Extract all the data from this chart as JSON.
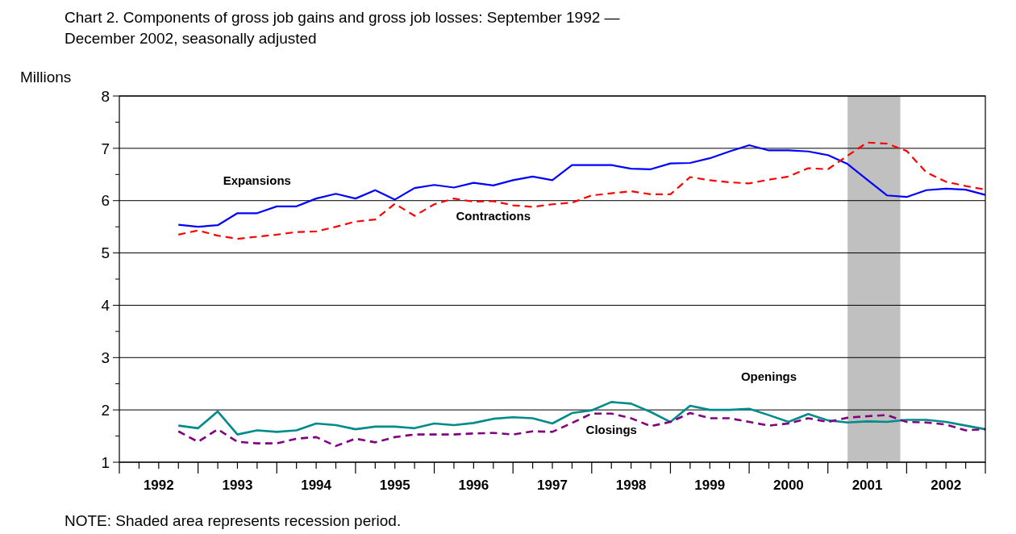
{
  "chart_data": {
    "type": "line",
    "title": "Chart 2. Components of gross job gains and gross job losses: September 1992 — December 2002, seasonally adjusted",
    "ylabel": "Millions",
    "x": [
      1992.75,
      1993,
      1993.25,
      1993.5,
      1993.75,
      1994,
      1994.25,
      1994.5,
      1994.75,
      1995,
      1995.25,
      1995.5,
      1995.75,
      1996,
      1996.25,
      1996.5,
      1996.75,
      1997,
      1997.25,
      1997.5,
      1997.75,
      1998,
      1998.25,
      1998.5,
      1998.75,
      1999,
      1999.25,
      1999.5,
      1999.75,
      2000,
      2000.25,
      2000.5,
      2000.75,
      2001,
      2001.25,
      2001.5,
      2001.75,
      2002,
      2002.25,
      2002.5,
      2002.75,
      2003
    ],
    "series": [
      {
        "name": "Expansions",
        "color": "#0000ff",
        "line_style": "solid",
        "values": [
          5.54,
          5.5,
          5.53,
          5.76,
          5.76,
          5.89,
          5.89,
          6.04,
          6.13,
          6.04,
          6.2,
          6.02,
          6.24,
          6.3,
          6.25,
          6.34,
          6.29,
          6.39,
          6.46,
          6.39,
          6.68,
          6.68,
          6.68,
          6.61,
          6.6,
          6.71,
          6.72,
          6.81,
          6.94,
          7.06,
          6.96,
          6.96,
          6.94,
          6.87,
          6.7,
          6.4,
          6.1,
          6.07,
          6.2,
          6.23,
          6.21,
          6.11
        ]
      },
      {
        "name": "Contractions",
        "color": "#ff0000",
        "line_style": "dashed",
        "values": [
          5.35,
          5.43,
          5.33,
          5.27,
          5.31,
          5.35,
          5.4,
          5.41,
          5.5,
          5.6,
          5.64,
          5.94,
          5.71,
          5.93,
          6.04,
          5.98,
          5.99,
          5.91,
          5.88,
          5.93,
          5.96,
          6.1,
          6.14,
          6.18,
          6.12,
          6.12,
          6.45,
          6.39,
          6.35,
          6.33,
          6.4,
          6.46,
          6.62,
          6.6,
          6.86,
          7.11,
          7.09,
          6.95,
          6.54,
          6.36,
          6.28,
          6.21
        ]
      },
      {
        "name": "Openings",
        "color": "#008b8b",
        "line_style": "solid",
        "values": [
          1.7,
          1.65,
          1.97,
          1.53,
          1.61,
          1.58,
          1.61,
          1.74,
          1.71,
          1.63,
          1.68,
          1.68,
          1.65,
          1.74,
          1.71,
          1.75,
          1.83,
          1.86,
          1.84,
          1.74,
          1.94,
          1.99,
          2.15,
          2.12,
          1.96,
          1.77,
          2.08,
          2.0,
          2.0,
          2.02,
          1.9,
          1.77,
          1.92,
          1.8,
          1.76,
          1.78,
          1.77,
          1.81,
          1.81,
          1.77,
          1.7,
          1.63
        ]
      },
      {
        "name": "Closings",
        "color": "#800080",
        "line_style": "dashed",
        "values": [
          1.59,
          1.39,
          1.63,
          1.39,
          1.36,
          1.36,
          1.45,
          1.48,
          1.31,
          1.45,
          1.38,
          1.48,
          1.53,
          1.53,
          1.53,
          1.55,
          1.56,
          1.53,
          1.59,
          1.58,
          1.75,
          1.93,
          1.93,
          1.84,
          1.69,
          1.77,
          1.94,
          1.84,
          1.84,
          1.77,
          1.7,
          1.74,
          1.84,
          1.77,
          1.85,
          1.88,
          1.9,
          1.77,
          1.76,
          1.72,
          1.61,
          1.63
        ]
      }
    ],
    "xlim": [
      1992,
      2003
    ],
    "xticks": [
      {
        "value": 1992,
        "label": null
      },
      {
        "value": 1992.25,
        "label": null
      },
      {
        "value": 1992.5,
        "label": "1992"
      },
      {
        "value": 1992.75,
        "label": null
      },
      {
        "value": 1993,
        "label": null
      },
      {
        "value": 1993.25,
        "label": null
      },
      {
        "value": 1993.5,
        "label": "1993"
      },
      {
        "value": 1993.75,
        "label": null
      },
      {
        "value": 1994,
        "label": null
      },
      {
        "value": 1994.25,
        "label": null
      },
      {
        "value": 1994.5,
        "label": "1994"
      },
      {
        "value": 1994.75,
        "label": null
      },
      {
        "value": 1995,
        "label": null
      },
      {
        "value": 1995.25,
        "label": null
      },
      {
        "value": 1995.5,
        "label": "1995"
      },
      {
        "value": 1995.75,
        "label": null
      },
      {
        "value": 1996,
        "label": null
      },
      {
        "value": 1996.25,
        "label": null
      },
      {
        "value": 1996.5,
        "label": "1996"
      },
      {
        "value": 1996.75,
        "label": null
      },
      {
        "value": 1997,
        "label": null
      },
      {
        "value": 1997.25,
        "label": null
      },
      {
        "value": 1997.5,
        "label": "1997"
      },
      {
        "value": 1997.75,
        "label": null
      },
      {
        "value": 1998,
        "label": null
      },
      {
        "value": 1998.25,
        "label": null
      },
      {
        "value": 1998.5,
        "label": "1998"
      },
      {
        "value": 1998.75,
        "label": null
      },
      {
        "value": 1999,
        "label": null
      },
      {
        "value": 1999.25,
        "label": null
      },
      {
        "value": 1999.5,
        "label": "1999"
      },
      {
        "value": 1999.75,
        "label": null
      },
      {
        "value": 2000,
        "label": null
      },
      {
        "value": 2000.25,
        "label": null
      },
      {
        "value": 2000.5,
        "label": "2000"
      },
      {
        "value": 2000.75,
        "label": null
      },
      {
        "value": 2001,
        "label": null
      },
      {
        "value": 2001.25,
        "label": null
      },
      {
        "value": 2001.5,
        "label": "2001"
      },
      {
        "value": 2001.75,
        "label": null
      },
      {
        "value": 2002,
        "label": null
      },
      {
        "value": 2002.25,
        "label": null
      },
      {
        "value": 2002.5,
        "label": "2002"
      },
      {
        "value": 2002.75,
        "label": null
      },
      {
        "value": 2003,
        "label": null
      }
    ],
    "ylim": [
      1,
      8
    ],
    "yticks": [
      1,
      {
        "value": 1.5,
        "label": null
      },
      2,
      {
        "value": 2.5,
        "label": null
      },
      3,
      {
        "value": 3.5,
        "label": null
      },
      4,
      {
        "value": 4.5,
        "label": null
      },
      5,
      {
        "value": 5.5,
        "label": null
      },
      6,
      {
        "value": 6.5,
        "label": null
      },
      7,
      {
        "value": 7.5,
        "label": null
      },
      8
    ],
    "grid": "y",
    "marker": "none",
    "bands": [
      {
        "axis": "x",
        "from": 2001.25,
        "to": 2001.92,
        "color": "#c0c0c0"
      }
    ],
    "annotations": [
      "NOTE: Shaded area represents recession period."
    ]
  }
}
